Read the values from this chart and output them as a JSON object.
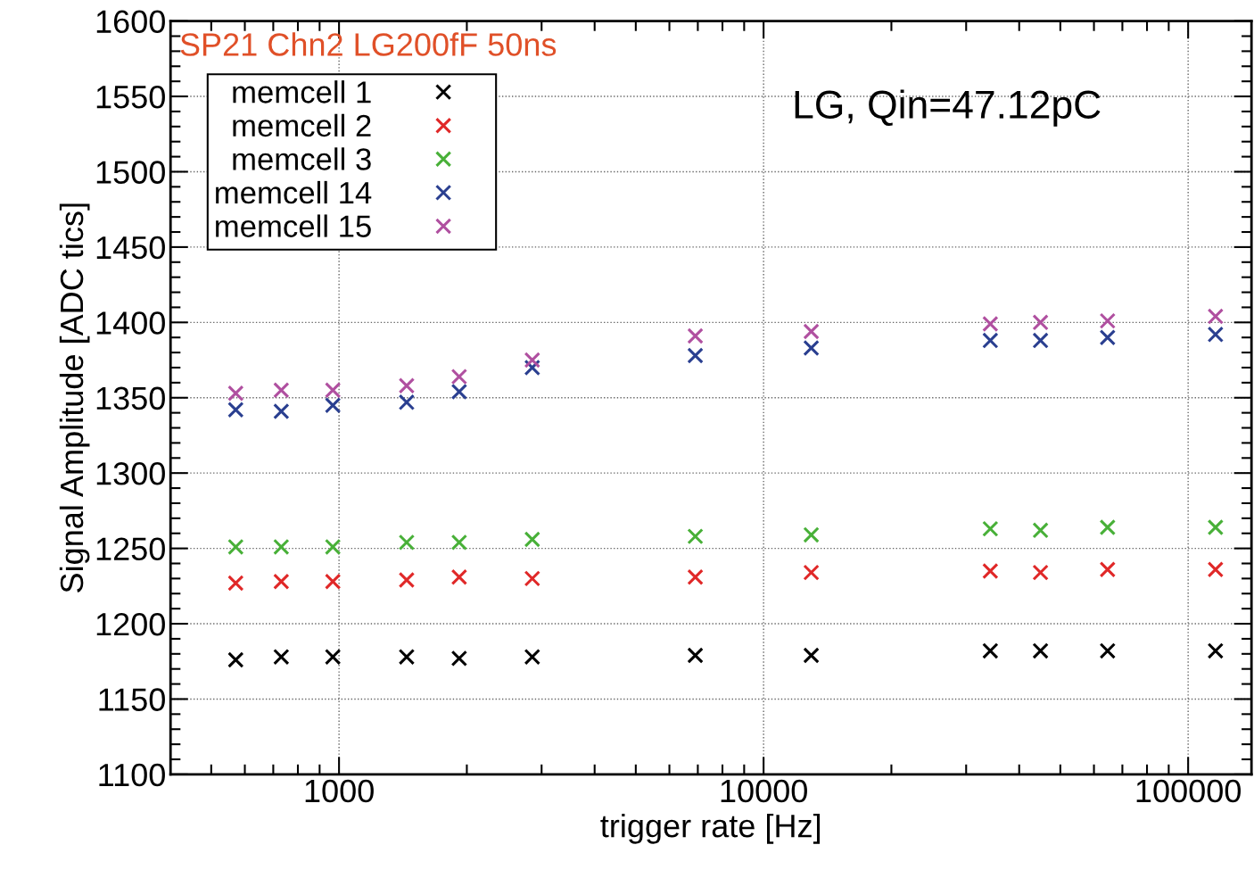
{
  "chart_data": {
    "type": "scatter",
    "title": "SP21 Chn2 LG200fF 50ns",
    "xlabel": "trigger rate [Hz]",
    "ylabel": "Signal Amplitude [ADC tics]",
    "annotations": [
      "LG, Qin=47.12pC"
    ],
    "x": [
      571,
      731,
      967,
      1443,
      1919,
      2852,
      6905,
      12950,
      34200,
      44900,
      64600,
      116000
    ],
    "series": [
      {
        "name": "memcell 1",
        "color": "#000000",
        "values": [
          1176,
          1178,
          1178,
          1178,
          1177,
          1178,
          1179,
          1179,
          1182,
          1182,
          1182,
          1182
        ]
      },
      {
        "name": "memcell 2",
        "color": "#e02828",
        "values": [
          1227,
          1228,
          1228,
          1229,
          1231,
          1230,
          1231,
          1234,
          1235,
          1234,
          1236,
          1236
        ]
      },
      {
        "name": "memcell 3",
        "color": "#48b038",
        "values": [
          1251,
          1251,
          1251,
          1254,
          1254,
          1256,
          1258,
          1259,
          1263,
          1262,
          1264,
          1264
        ]
      },
      {
        "name": "memcell 14",
        "color": "#2a3f90",
        "values": [
          1342,
          1341,
          1345,
          1347,
          1354,
          1370,
          1378,
          1383,
          1388,
          1388,
          1390,
          1392
        ]
      },
      {
        "name": "memcell 15",
        "color": "#b050a0",
        "values": [
          1353,
          1355,
          1355,
          1358,
          1364,
          1375,
          1391,
          1394,
          1399,
          1400,
          1401,
          1404
        ]
      }
    ],
    "log": "x",
    "xlim": [
      401,
      141000
    ],
    "xticks": [
      1000,
      10000,
      100000
    ],
    "ylim": [
      1100,
      1600
    ],
    "yticks": [
      1100,
      1150,
      1200,
      1250,
      1300,
      1350,
      1400,
      1450,
      1500,
      1550,
      1600
    ],
    "grid": true,
    "legend": "top left",
    "marker": "cross"
  }
}
